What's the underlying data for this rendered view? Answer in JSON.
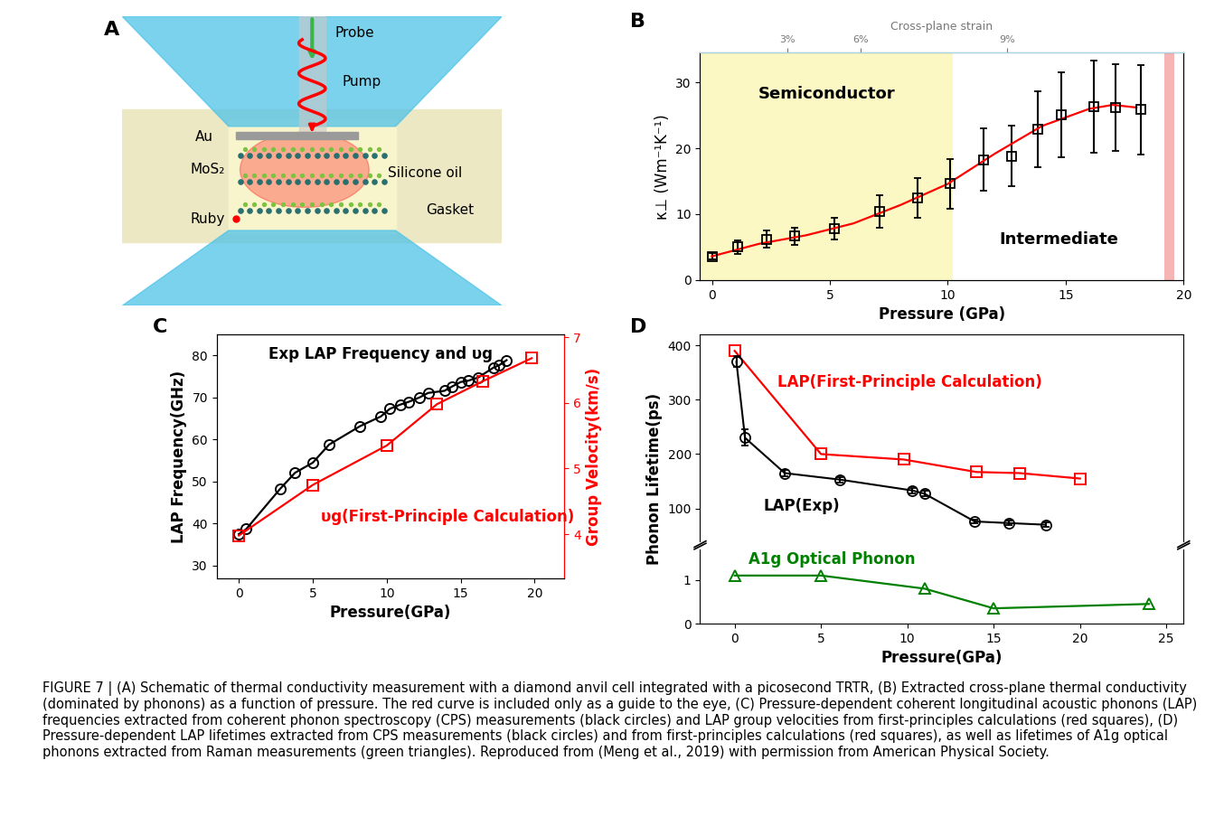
{
  "panel_labels": [
    "A",
    "B",
    "C",
    "D"
  ],
  "schematic": {
    "probe": "Probe",
    "pump": "Pump",
    "au": "Au",
    "mos2": "MoS₂",
    "oil": "Silicone oil",
    "ruby": "Ruby",
    "gasket": "Gasket"
  },
  "chart_data": [
    {
      "type": "scatter",
      "x_label": "Pressure (GPa)",
      "y_label": "κ⊥ (Wm⁻¹K⁻¹)",
      "xlim": [
        -0.5,
        20
      ],
      "xticks": [
        0,
        5,
        10,
        15,
        20
      ],
      "ylim": [
        0,
        34.5
      ],
      "yticks": [
        0,
        10,
        20,
        30
      ],
      "top_axis": {
        "title": "Cross-plane strain",
        "ticks": [
          {
            "value": 3.2,
            "label": "3%"
          },
          {
            "value": 6.3,
            "label": "6%"
          },
          {
            "value": 12.5,
            "label": "9%"
          }
        ]
      },
      "regions": [
        {
          "name": "Semiconductor",
          "x": [
            -0.5,
            10.2
          ],
          "color": "#fcf8c4"
        },
        {
          "name": "Intermediate",
          "x": [
            10.2,
            19.2
          ],
          "color": "#ffffff"
        },
        {
          "x": [
            19.2,
            19.6
          ],
          "color": "#f5b5b5"
        }
      ],
      "series": [
        {
          "type": "scatter",
          "color": "black",
          "marker": "square",
          "line_style": "none",
          "x": [
            0,
            1.1,
            2.3,
            3.5,
            5.2,
            7.1,
            8.7,
            10.1,
            11.5,
            12.7,
            13.8,
            14.8,
            16.2,
            17.1,
            18.2
          ],
          "values": [
            3.6,
            5.0,
            6.2,
            6.7,
            7.8,
            10.4,
            12.5,
            14.6,
            18.3,
            18.8,
            22.9,
            25.1,
            26.4,
            26.2,
            25.9
          ],
          "errors": [
            0.5,
            1.0,
            1.3,
            1.3,
            1.7,
            2.5,
            3.0,
            3.8,
            4.8,
            4.6,
            5.8,
            6.5,
            7.0,
            6.6,
            6.8
          ]
        },
        {
          "type": "line",
          "color": "red",
          "line_style": "solid",
          "x": [
            0,
            2,
            4,
            6,
            8,
            10,
            12,
            14,
            16,
            17,
            18
          ],
          "values": [
            3.6,
            5.5,
            6.8,
            8.6,
            11.4,
            14.6,
            19.2,
            23.4,
            26.0,
            26.6,
            26.2
          ]
        }
      ]
    },
    {
      "type": "line",
      "x_label": "Pressure(GPa)",
      "y_label": "LAP Frequency(GHz)",
      "y2_label": "Group Velocity(km/s)",
      "xlim": [
        -1.5,
        22
      ],
      "xticks": [
        0,
        5,
        10,
        15,
        20
      ],
      "ylim": [
        27,
        85
      ],
      "yticks": [
        30,
        40,
        50,
        60,
        70,
        80
      ],
      "y2lim": [
        3.33,
        7.04
      ],
      "y2ticks": [
        4,
        5,
        6,
        7
      ],
      "series": [
        {
          "name": "Exp LAP Frequency and υg",
          "color": "black",
          "marker": "circle",
          "line_style": "solid",
          "x": [
            0,
            0.5,
            2.8,
            3.8,
            5.0,
            6.1,
            8.2,
            9.6,
            10.2,
            10.9,
            11.5,
            12.2,
            12.8,
            13.9,
            14.4,
            15.0,
            15.5,
            16.2,
            17.2,
            17.6,
            18.1
          ],
          "values": [
            37.5,
            38.7,
            48.3,
            52.1,
            54.5,
            58.8,
            63.2,
            65.5,
            67.3,
            68.3,
            69.0,
            70.0,
            71.1,
            71.6,
            72.6,
            73.7,
            74.0,
            74.8,
            77.1,
            77.7,
            78.9
          ]
        },
        {
          "name": "υg(First-Principle Calculation)",
          "color": "red",
          "marker": "square",
          "line_style": "solid",
          "axis": "y2",
          "x": [
            0,
            5,
            10,
            13.4,
            16.5,
            19.8
          ],
          "values": [
            3.98,
            4.75,
            5.35,
            5.98,
            6.33,
            6.68
          ]
        }
      ]
    },
    {
      "type": "line",
      "x_label": "Pressure(GPa)",
      "y_label": "Phonon Lifetime(ps)",
      "xlim": [
        -2,
        26
      ],
      "xticks": [
        0,
        5,
        10,
        15,
        20,
        25
      ],
      "y_break": {
        "lower": {
          "ylim": [
            0,
            1.7
          ],
          "yticks": [
            0,
            1
          ]
        },
        "upper": {
          "ylim": [
            40,
            420
          ],
          "yticks": [
            100,
            200,
            300,
            400
          ]
        }
      },
      "series": [
        {
          "name": "LAP(First-Principle Calculation)",
          "color": "red",
          "marker": "square",
          "line_style": "solid",
          "x": [
            0,
            5,
            9.8,
            14,
            16.5,
            20
          ],
          "values": [
            390,
            200,
            190,
            167,
            165,
            155
          ]
        },
        {
          "name": "LAP(Exp)",
          "color": "black",
          "marker": "circle",
          "line_style": "solid",
          "x": [
            0.1,
            0.6,
            2.9,
            6.1,
            10.3,
            11,
            13.9,
            15.9,
            18
          ],
          "values": [
            370,
            230,
            165,
            153,
            133,
            127,
            76,
            73,
            70
          ],
          "errors": [
            10,
            15,
            5,
            5,
            5,
            5,
            4,
            4,
            4
          ]
        },
        {
          "name": "A1g Optical Phonon",
          "color": "green",
          "marker": "triangle",
          "line_style": "solid",
          "x": [
            0,
            5,
            11,
            15,
            24
          ],
          "values": [
            1.1,
            1.1,
            0.8,
            0.35,
            0.45
          ]
        }
      ]
    }
  ],
  "caption": "FIGURE 7 | (A) Schematic of thermal conductivity measurement with a diamond anvil cell integrated with a picosecond TRTR, (B) Extracted cross-plane thermal conductivity (dominated by phonons) as a function of pressure. The red curve is included only as a guide to the eye, (C) Pressure-dependent coherent longitudinal acoustic phonons (LAP) frequencies extracted from coherent phonon spectroscopy (CPS) measurements (black circles) and LAP group velocities from first-principles calculations (red squares), (D) Pressure-dependent LAP lifetimes extracted from CPS measurements (black circles) and from first-principles calculations (red squares), as well as lifetimes of A1g optical phonons extracted from Raman measurements (green triangles). Reproduced from (Meng et al., 2019) with permission from American Physical Society."
}
